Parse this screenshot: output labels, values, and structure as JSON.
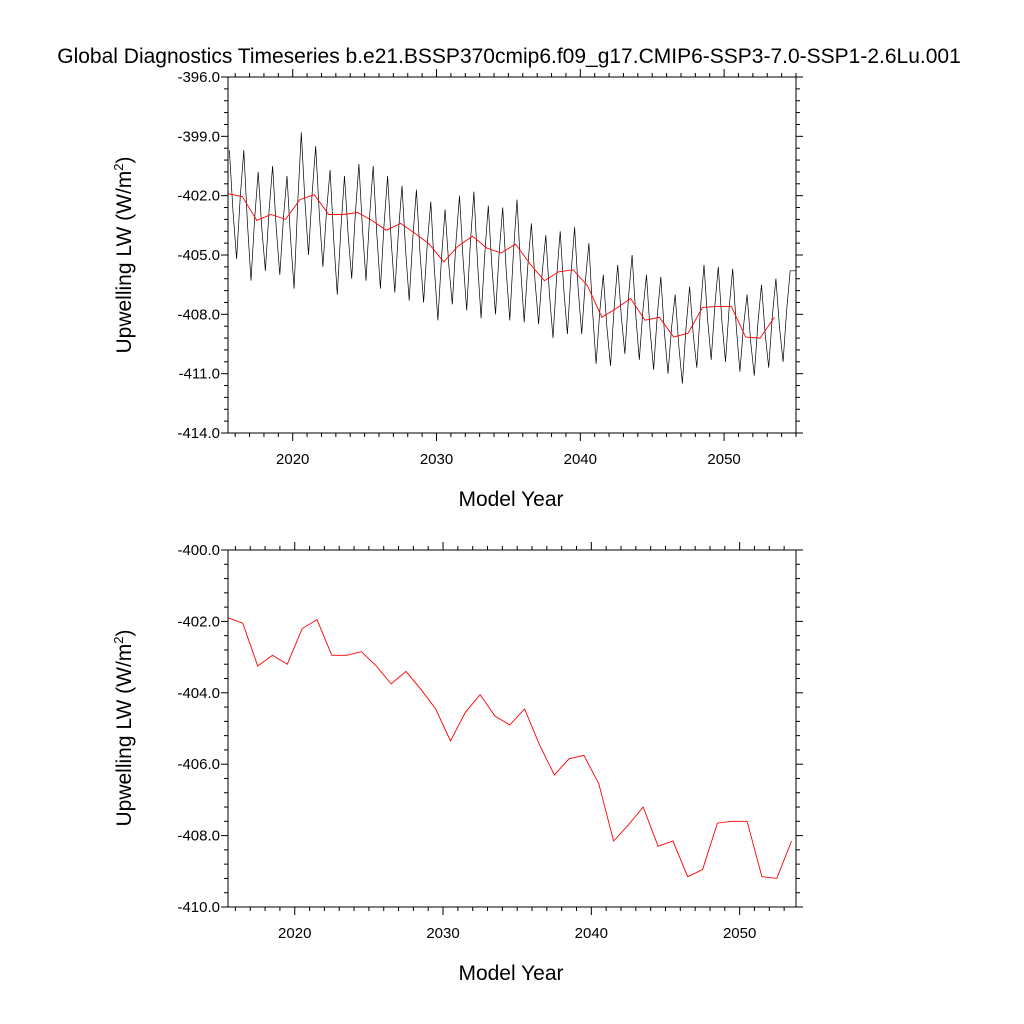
{
  "title": "Global Diagnostics Timeseries b.e21.BSSP370cmip6.f09_g17.CMIP6-SSP3-7.0-SSP1-2.6Lu.001",
  "colors": {
    "monthly": "#000000",
    "annual": "#ff0000",
    "axes": "#000000"
  },
  "chart_data": [
    {
      "type": "line",
      "xlabel": "Model Year",
      "ylabel": "Upwelling LW (W/m2)",
      "xlim": [
        2015.5,
        2055.0
      ],
      "ylim": [
        -414.0,
        -396.0
      ],
      "xticks": [
        2020,
        2030,
        2040,
        2050
      ],
      "xtick_labels": [
        "2020",
        "2030",
        "2040",
        "2050"
      ],
      "yticks": [
        -414.0,
        -411.0,
        -408.0,
        -405.0,
        -402.0,
        -399.0,
        -396.0
      ],
      "ytick_labels": [
        "-414.0",
        "-411.0",
        "-408.0",
        "-405.0",
        "-402.0",
        "-399.0",
        "-396.0"
      ],
      "grid": false,
      "legend": "none",
      "series": [
        {
          "style": "monthly",
          "color": "#000000",
          "cycle_peak_year": [
            2015.6,
            2016.6,
            2017.6,
            2018.6,
            2019.6,
            2020.6,
            2021.6,
            2022.6,
            2023.6,
            2024.6,
            2025.6,
            2026.6,
            2027.6,
            2028.6,
            2029.6,
            2030.6,
            2031.6,
            2032.6,
            2033.6,
            2034.6,
            2035.6,
            2036.6,
            2037.6,
            2038.6,
            2039.6,
            2040.6,
            2041.6,
            2042.6,
            2043.6,
            2044.6,
            2045.6,
            2046.6,
            2047.6,
            2048.6,
            2049.6,
            2050.6,
            2051.6,
            2052.6,
            2053.6,
            2054.6
          ],
          "cycle_peak": [
            -399.7,
            -399.7,
            -400.8,
            -400.5,
            -401.0,
            -398.8,
            -399.5,
            -400.7,
            -401.0,
            -400.4,
            -400.5,
            -401.0,
            -401.5,
            -401.7,
            -402.3,
            -402.7,
            -402.0,
            -401.8,
            -402.5,
            -402.6,
            -402.2,
            -403.4,
            -404.0,
            -403.8,
            -403.6,
            -404.4,
            -406.0,
            -405.5,
            -405.0,
            -406.0,
            -406.1,
            -407.0,
            -406.6,
            -405.5,
            -405.6,
            -405.7,
            -407.0,
            -406.5,
            -406.2,
            -405.8
          ],
          "cycle_trough_year": [
            2016.1,
            2017.1,
            2018.1,
            2019.1,
            2020.1,
            2021.1,
            2022.1,
            2023.1,
            2024.1,
            2025.1,
            2026.1,
            2027.1,
            2028.1,
            2029.1,
            2030.1,
            2031.1,
            2032.1,
            2033.1,
            2034.1,
            2035.1,
            2036.1,
            2037.1,
            2038.1,
            2039.1,
            2040.1,
            2041.1,
            2042.1,
            2043.1,
            2044.1,
            2045.1,
            2046.1,
            2047.1,
            2048.1,
            2049.1,
            2050.1,
            2051.1,
            2052.1,
            2053.1,
            2054.1
          ],
          "cycle_trough": [
            -405.2,
            -406.3,
            -405.8,
            -406.0,
            -406.7,
            -405.0,
            -405.6,
            -407.0,
            -406.2,
            -406.3,
            -406.7,
            -406.9,
            -407.3,
            -407.4,
            -408.3,
            -407.5,
            -407.8,
            -408.2,
            -408.0,
            -408.3,
            -408.4,
            -408.5,
            -409.2,
            -409.0,
            -409.0,
            -410.5,
            -410.6,
            -410.0,
            -410.3,
            -410.8,
            -411.0,
            -411.5,
            -410.7,
            -410.3,
            -410.4,
            -410.9,
            -411.1,
            -410.7,
            -410.4
          ]
        },
        {
          "style": "annual",
          "color": "#ff0000",
          "x": [
            2015.5,
            2016.5,
            2017.5,
            2018.5,
            2019.5,
            2020.5,
            2021.5,
            2022.5,
            2023.5,
            2024.5,
            2025.5,
            2026.5,
            2027.5,
            2028.5,
            2029.5,
            2030.5,
            2031.5,
            2032.5,
            2033.5,
            2034.5,
            2035.5,
            2036.5,
            2037.5,
            2038.5,
            2039.5,
            2040.5,
            2041.5,
            2042.5,
            2043.5,
            2044.5,
            2045.5,
            2046.5,
            2047.5,
            2048.5,
            2049.5,
            2050.5,
            2051.5,
            2052.5,
            2053.5
          ],
          "y": [
            -401.9,
            -402.05,
            -403.25,
            -402.95,
            -403.2,
            -402.2,
            -401.95,
            -402.95,
            -402.95,
            -402.85,
            -403.25,
            -403.75,
            -403.4,
            -403.9,
            -404.45,
            -405.35,
            -404.55,
            -404.05,
            -404.65,
            -404.9,
            -404.45,
            -405.45,
            -406.3,
            -405.85,
            -405.75,
            -406.55,
            -408.15,
            -407.7,
            -407.2,
            -408.3,
            -408.15,
            -409.15,
            -408.95,
            -407.65,
            -407.6,
            -407.6,
            -409.15,
            -409.2,
            -408.15
          ]
        }
      ]
    },
    {
      "type": "line",
      "xlabel": "Model Year",
      "ylabel": "Upwelling LW (W/m2)",
      "xlim": [
        2015.5,
        2053.8
      ],
      "ylim": [
        -410.0,
        -400.0
      ],
      "xticks": [
        2020,
        2030,
        2040,
        2050
      ],
      "xtick_labels": [
        "2020",
        "2030",
        "2040",
        "2050"
      ],
      "yticks": [
        -410.0,
        -408.0,
        -406.0,
        -404.0,
        -402.0,
        -400.0
      ],
      "ytick_labels": [
        "-410.0",
        "-408.0",
        "-406.0",
        "-404.0",
        "-402.0",
        "-400.0"
      ],
      "grid": false,
      "legend": "none",
      "series": [
        {
          "style": "annual",
          "color": "#ff0000",
          "x": [
            2015.5,
            2016.5,
            2017.5,
            2018.5,
            2019.5,
            2020.5,
            2021.5,
            2022.5,
            2023.5,
            2024.5,
            2025.5,
            2026.5,
            2027.5,
            2028.5,
            2029.5,
            2030.5,
            2031.5,
            2032.5,
            2033.5,
            2034.5,
            2035.5,
            2036.5,
            2037.5,
            2038.5,
            2039.5,
            2040.5,
            2041.5,
            2042.5,
            2043.5,
            2044.5,
            2045.5,
            2046.5,
            2047.5,
            2048.5,
            2049.5,
            2050.5,
            2051.5,
            2052.5,
            2053.5
          ],
          "y": [
            -401.9,
            -402.05,
            -403.25,
            -402.95,
            -403.2,
            -402.2,
            -401.95,
            -402.95,
            -402.95,
            -402.85,
            -403.25,
            -403.75,
            -403.4,
            -403.9,
            -404.45,
            -405.35,
            -404.55,
            -404.05,
            -404.65,
            -404.9,
            -404.45,
            -405.45,
            -406.3,
            -405.85,
            -405.75,
            -406.55,
            -408.15,
            -407.7,
            -407.2,
            -408.3,
            -408.15,
            -409.15,
            -408.95,
            -407.65,
            -407.6,
            -407.6,
            -409.15,
            -409.2,
            -408.15
          ]
        }
      ]
    }
  ]
}
